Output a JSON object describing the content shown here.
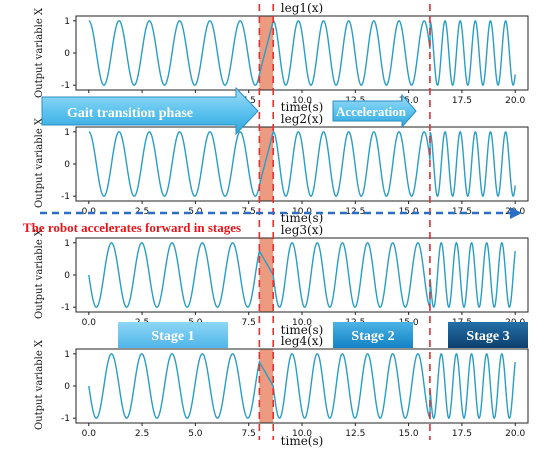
{
  "chart_data": {
    "type": "line",
    "ylabel": "Output variable X",
    "xlabel": "time(s)",
    "x_ticks": [
      "0.0",
      "2.5",
      "5.0",
      "7.5",
      "10.0",
      "12.5",
      "15.0",
      "17.5",
      "20.0"
    ],
    "y_ticks": [
      "1",
      "0",
      "-1"
    ],
    "xlim": [
      -0.6,
      20.6
    ],
    "ylim": [
      -1.15,
      1.15
    ],
    "grid": false,
    "line_color": "#2a9dc4",
    "marker_color": "#e03030",
    "shade_color": "#e9896b",
    "transition_lines_x": [
      8.0,
      8.65,
      16.0
    ],
    "shaded_interval": [
      8.0,
      8.65
    ],
    "stages": {
      "stage1": {
        "t_start": 0.0,
        "t_end": 8.0,
        "period": 1.42
      },
      "stage2": {
        "t_start": 8.65,
        "t_end": 16.0,
        "period": 1.18
      },
      "stage3": {
        "t_start": 16.0,
        "t_end": 20.0,
        "period": 0.71
      }
    },
    "subplots": [
      {
        "title": "leg1(x)",
        "phase_shift": 0.0
      },
      {
        "title": "leg2(x)",
        "phase_shift": 0.0
      },
      {
        "title": "leg3(x)",
        "phase_shift": 0.5
      },
      {
        "title": "leg4(x)",
        "phase_shift": 0.5
      }
    ]
  },
  "annotations": {
    "gait_transition": "Gait transition phase",
    "acceleration": "Acceleration",
    "robot_accelerates": "The robot accelerates forward in stages",
    "stage1": "Stage 1",
    "stage2": "Stage 2",
    "stage3": "Stage 3"
  }
}
